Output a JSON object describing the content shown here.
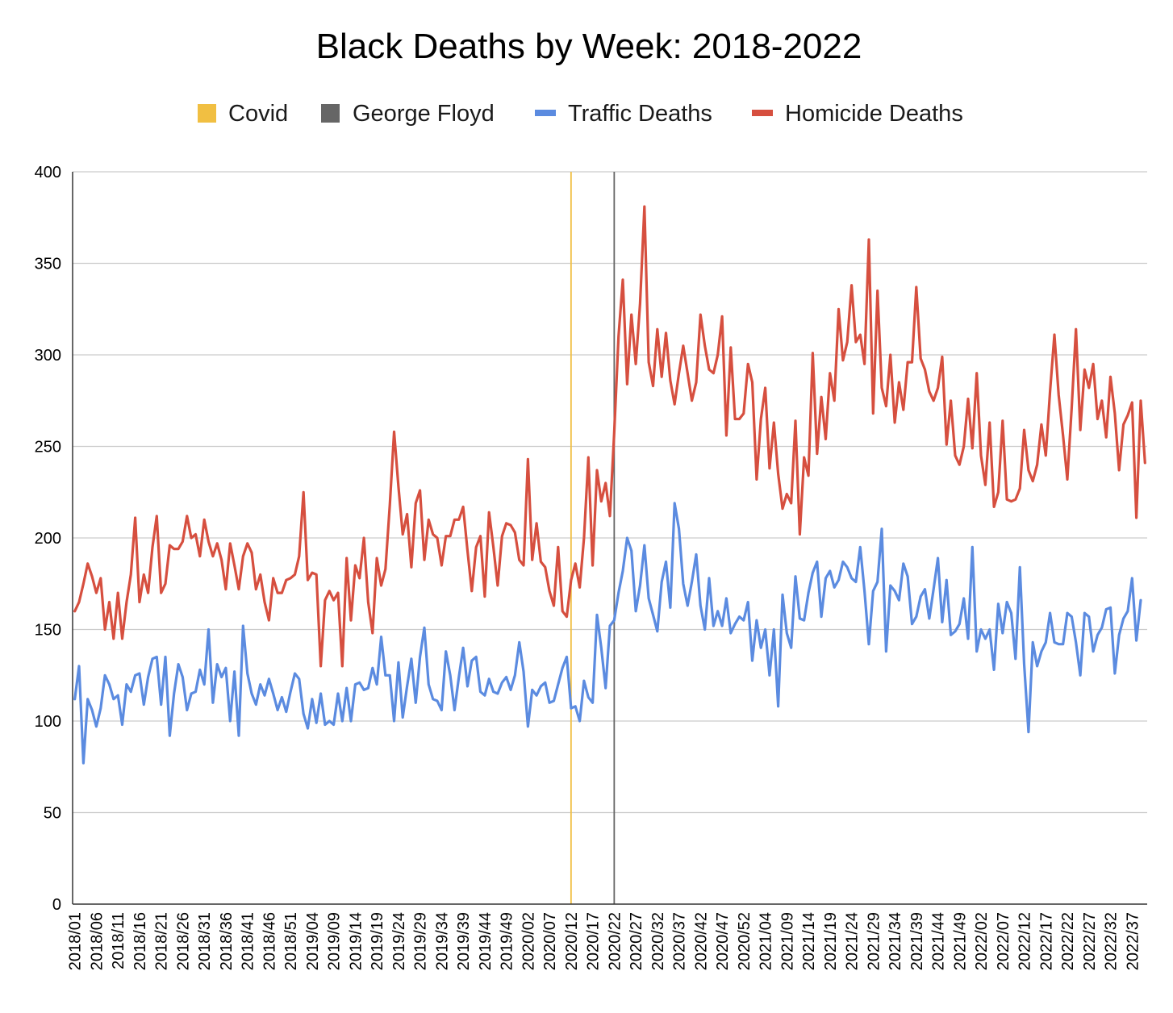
{
  "chart_data": {
    "type": "line",
    "title": "Black Deaths by Week: 2018-2022",
    "xlabel": "",
    "ylabel": "",
    "ylim": [
      0,
      400
    ],
    "yticks": [
      "0",
      "50",
      "100",
      "150",
      "200",
      "250",
      "300",
      "350",
      "400"
    ],
    "grid": true,
    "legend_position": "top",
    "legend": [
      {
        "name": "Covid",
        "kind": "marker",
        "color": "#f1bf42"
      },
      {
        "name": "George Floyd",
        "kind": "marker",
        "color": "#666666"
      },
      {
        "name": "Traffic Deaths",
        "kind": "line",
        "color": "#5b8be0"
      },
      {
        "name": "Homicide Deaths",
        "kind": "line",
        "color": "#d64f3f"
      }
    ],
    "x_tick_labels": [
      "2018/01",
      "2018/06",
      "2018/11",
      "2018/16",
      "2018/21",
      "2018/26",
      "2018/31",
      "2018/36",
      "2018/41",
      "2018/46",
      "2018/51",
      "2019/04",
      "2019/09",
      "2019/14",
      "2019/19",
      "2019/24",
      "2019/29",
      "2019/34",
      "2019/39",
      "2019/44",
      "2019/49",
      "2020/02",
      "2020/07",
      "2020/12",
      "2020/17",
      "2020/22",
      "2020/27",
      "2020/32",
      "2020/37",
      "2020/42",
      "2020/47",
      "2020/52",
      "2021/04",
      "2021/09",
      "2021/14",
      "2021/19",
      "2021/24",
      "2021/29",
      "2021/34",
      "2021/39",
      "2021/44",
      "2021/49",
      "2022/02",
      "2022/07",
      "2022/12",
      "2022/17",
      "2022/22",
      "2022/27",
      "2022/32",
      "2022/37"
    ],
    "markers": [
      {
        "name": "Covid",
        "x": "2020/12",
        "color": "#f1bf42"
      },
      {
        "name": "George Floyd",
        "x": "2020/22",
        "color": "#666666"
      }
    ],
    "series": [
      {
        "name": "Homicide Deaths",
        "color": "#d64f3f",
        "values": [
          160,
          165,
          175,
          186,
          179,
          170,
          178,
          150,
          165,
          145,
          170,
          145,
          165,
          180,
          211,
          165,
          180,
          170,
          195,
          212,
          170,
          175,
          196,
          194,
          194,
          198,
          212,
          200,
          202,
          190,
          210,
          198,
          190,
          197,
          188,
          172,
          197,
          185,
          172,
          190,
          197,
          192,
          172,
          180,
          165,
          155,
          178,
          170,
          170,
          177,
          178,
          180,
          190,
          225,
          177,
          181,
          180,
          130,
          166,
          171,
          166,
          170,
          130,
          189,
          155,
          185,
          178,
          200,
          165,
          148,
          189,
          174,
          183,
          218,
          258,
          228,
          202,
          213,
          184,
          219,
          226,
          188,
          210,
          202,
          200,
          185,
          201,
          201,
          210,
          210,
          217,
          193,
          171,
          195,
          201,
          168,
          214,
          195,
          174,
          201,
          208,
          207,
          203,
          188,
          185,
          243,
          188,
          208,
          187,
          184,
          171,
          163,
          195,
          160,
          157,
          177,
          186,
          173,
          200,
          244,
          185,
          237,
          220,
          230,
          212,
          257,
          310,
          341,
          284,
          322,
          295,
          328,
          381,
          296,
          283,
          314,
          288,
          312,
          286,
          273,
          290,
          305,
          290,
          275,
          285,
          322,
          305,
          292,
          290,
          300,
          321,
          256,
          304,
          265,
          265,
          268,
          295,
          285,
          232,
          265,
          282,
          238,
          263,
          235,
          216,
          224,
          219,
          264,
          202,
          244,
          234,
          301,
          246,
          277,
          254,
          290,
          275,
          325,
          297,
          307,
          338,
          307,
          311,
          295,
          363,
          268,
          335,
          282,
          272,
          300,
          263,
          285,
          270,
          296,
          296,
          337,
          298,
          292,
          280,
          275,
          282,
          299,
          251,
          275,
          245,
          240,
          250,
          276,
          249,
          290,
          245,
          229,
          263,
          217,
          225,
          264,
          221,
          220,
          221,
          227,
          259,
          237,
          231,
          240,
          262,
          245,
          280,
          311,
          278,
          256,
          232,
          271,
          314,
          259,
          292,
          282,
          295,
          265,
          275,
          255,
          288,
          268,
          237,
          262,
          267,
          274,
          211,
          275,
          241
        ]
      },
      {
        "name": "Traffic Deaths",
        "color": "#5b8be0",
        "values": [
          112,
          130,
          77,
          112,
          106,
          97,
          107,
          125,
          120,
          112,
          114,
          98,
          120,
          116,
          125,
          126,
          109,
          124,
          134,
          135,
          109,
          135,
          92,
          115,
          131,
          124,
          106,
          115,
          116,
          128,
          120,
          150,
          110,
          131,
          124,
          129,
          100,
          127,
          92,
          152,
          126,
          115,
          109,
          120,
          114,
          123,
          115,
          106,
          113,
          105,
          116,
          126,
          123,
          104,
          96,
          112,
          99,
          115,
          98,
          100,
          98,
          115,
          100,
          118,
          100,
          120,
          121,
          117,
          118,
          129,
          120,
          146,
          125,
          125,
          100,
          132,
          102,
          119,
          134,
          110,
          135,
          151,
          120,
          112,
          111,
          106,
          138,
          125,
          106,
          124,
          140,
          119,
          133,
          135,
          116,
          114,
          123,
          116,
          115,
          121,
          124,
          117,
          125,
          143,
          127,
          97,
          117,
          114,
          119,
          121,
          110,
          111,
          120,
          129,
          135,
          107,
          108,
          100,
          122,
          113,
          110,
          158,
          140,
          118,
          152,
          155,
          170,
          182,
          200,
          193,
          160,
          174,
          196,
          167,
          158,
          149,
          176,
          187,
          162,
          219,
          205,
          175,
          163,
          176,
          191,
          163,
          150,
          178,
          152,
          160,
          152,
          167,
          148,
          153,
          157,
          155,
          165,
          133,
          155,
          140,
          150,
          125,
          150,
          108,
          169,
          148,
          140,
          179,
          156,
          155,
          170,
          181,
          187,
          157,
          178,
          182,
          173,
          177,
          187,
          184,
          178,
          176,
          195,
          171,
          142,
          171,
          176,
          205,
          138,
          174,
          171,
          166,
          186,
          179,
          153,
          157,
          168,
          172,
          156,
          172,
          189,
          154,
          177,
          147,
          149,
          153,
          167,
          145,
          195,
          138,
          150,
          145,
          150,
          128,
          164,
          148,
          165,
          159,
          134,
          184,
          131,
          94,
          143,
          130,
          138,
          143,
          159,
          143,
          142,
          142,
          159,
          157,
          143,
          125,
          159,
          157,
          138,
          147,
          151,
          161,
          162,
          126,
          147,
          156,
          160,
          178,
          144,
          166
        ]
      }
    ]
  }
}
